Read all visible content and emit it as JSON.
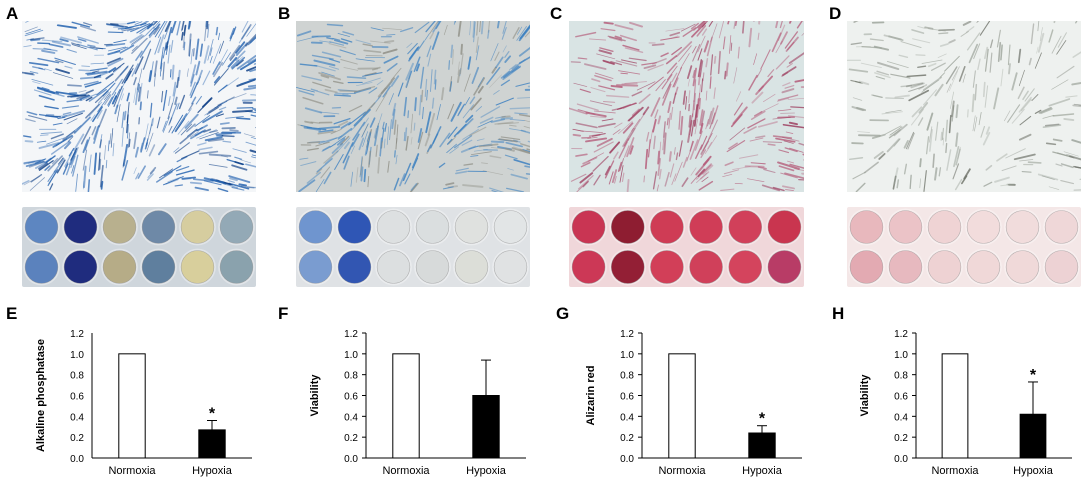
{
  "panels": {
    "A": {
      "letter": "A"
    },
    "B": {
      "letter": "B"
    },
    "C": {
      "letter": "C"
    },
    "D": {
      "letter": "D"
    },
    "E": {
      "letter": "E"
    },
    "F": {
      "letter": "F"
    },
    "G": {
      "letter": "G"
    },
    "H": {
      "letter": "H"
    }
  },
  "photos": {
    "A": {
      "bg": "#f4f6f8",
      "stain": "#1f5fae",
      "stain_dark": "#0e3f86",
      "density": 1.0
    },
    "B": {
      "bg": "#cfd3d2",
      "stain": "#3a7fc0",
      "stain_dark": "#8f8f86",
      "density": 0.75
    },
    "C": {
      "bg": "#d9e4e4",
      "stain": "#b45a78",
      "stain_dark": "#9c3a5c",
      "density": 0.7
    },
    "D": {
      "bg": "#eef1ef",
      "stain": "#9ca39a",
      "stain_dark": "#6d7168",
      "density": 0.45
    }
  },
  "plates": {
    "A": {
      "bg": "#cfd6dc",
      "wells_top": [
        "#5d86c1",
        "#1f2c7e",
        "#b8b08e",
        "#6e89a7",
        "#d6cd9f",
        "#93a9b6"
      ],
      "wells_bottom": [
        "#5b82bd",
        "#1f2c7e",
        "#b6ac87",
        "#5f7f9e",
        "#d8cf9c",
        "#8aa2ad"
      ]
    },
    "B": {
      "bg": "#dfe2e5",
      "wells_top": [
        "#6f95cf",
        "#2f56b5",
        "#dde0e1",
        "#dadedf",
        "#dfe1df",
        "#e2e5e6"
      ],
      "wells_bottom": [
        "#7a9cd0",
        "#3256b2",
        "#dcdfe0",
        "#d7dada",
        "#dcded8",
        "#e0e2e3"
      ]
    },
    "C": {
      "bg": "#f0d7da",
      "wells_top": [
        "#c93553",
        "#8e1d31",
        "#cf3c55",
        "#d03d57",
        "#d1405a",
        "#c9354f"
      ],
      "wells_bottom": [
        "#cc3856",
        "#931f35",
        "#d23f58",
        "#d0405a",
        "#d4445d",
        "#b83c66"
      ]
    },
    "D": {
      "bg": "#f4e7e7",
      "wells_top": [
        "#e8b8bd",
        "#ebc3c7",
        "#efd3d4",
        "#f2dcdc",
        "#f1dcdc",
        "#efd7d8"
      ],
      "wells_bottom": [
        "#e3aab2",
        "#e7b9bf",
        "#eed2d3",
        "#f0d8d8",
        "#f0d9d9",
        "#edd2d4"
      ]
    }
  },
  "chart_data": [
    {
      "panel": "E",
      "type": "bar",
      "categories": [
        "Normoxia",
        "Hypoxia"
      ],
      "values": [
        1.0,
        0.27
      ],
      "errors": [
        0,
        0.09
      ],
      "significant": [
        false,
        true
      ],
      "significance_mark": "*",
      "ylabel": "Alkaline phosphatase",
      "ylim": [
        0,
        1.2
      ],
      "yticks": [
        "0.0",
        "0.2",
        "0.4",
        "0.6",
        "0.8",
        "1.0",
        "1.2"
      ],
      "show_ticks": false,
      "bar_fill": [
        "#ffffff",
        "#000000"
      ]
    },
    {
      "panel": "F",
      "type": "bar",
      "categories": [
        "Normoxia",
        "Hypoxia"
      ],
      "values": [
        1.0,
        0.6
      ],
      "errors": [
        0,
        0.34
      ],
      "significant": [
        false,
        false
      ],
      "significance_mark": "*",
      "ylabel": "Viability",
      "ylim": [
        0,
        1.2
      ],
      "yticks": [
        "0.0",
        "0.2",
        "0.4",
        "0.6",
        "0.8",
        "1.0",
        "1.2"
      ],
      "show_ticks": true,
      "bar_fill": [
        "#ffffff",
        "#000000"
      ]
    },
    {
      "panel": "G",
      "type": "bar",
      "categories": [
        "Normoxia",
        "Hypoxia"
      ],
      "values": [
        1.0,
        0.24
      ],
      "errors": [
        0,
        0.07
      ],
      "significant": [
        false,
        true
      ],
      "significance_mark": "*",
      "ylabel": "Alizarin red",
      "ylim": [
        0,
        1.2
      ],
      "yticks": [
        "0.0",
        "0.2",
        "0.4",
        "0.6",
        "0.8",
        "1.0",
        "1.2"
      ],
      "show_ticks": true,
      "bar_fill": [
        "#ffffff",
        "#000000"
      ]
    },
    {
      "panel": "H",
      "type": "bar",
      "categories": [
        "Normoxia",
        "Hypoxia"
      ],
      "values": [
        1.0,
        0.42
      ],
      "errors": [
        0,
        0.31
      ],
      "significant": [
        false,
        true
      ],
      "significance_mark": "*",
      "ylabel": "Viability",
      "ylim": [
        0,
        1.2
      ],
      "yticks": [
        "0.0",
        "0.2",
        "0.4",
        "0.6",
        "0.8",
        "1.0",
        "1.2"
      ],
      "show_ticks": true,
      "bar_fill": [
        "#ffffff",
        "#000000"
      ]
    }
  ]
}
